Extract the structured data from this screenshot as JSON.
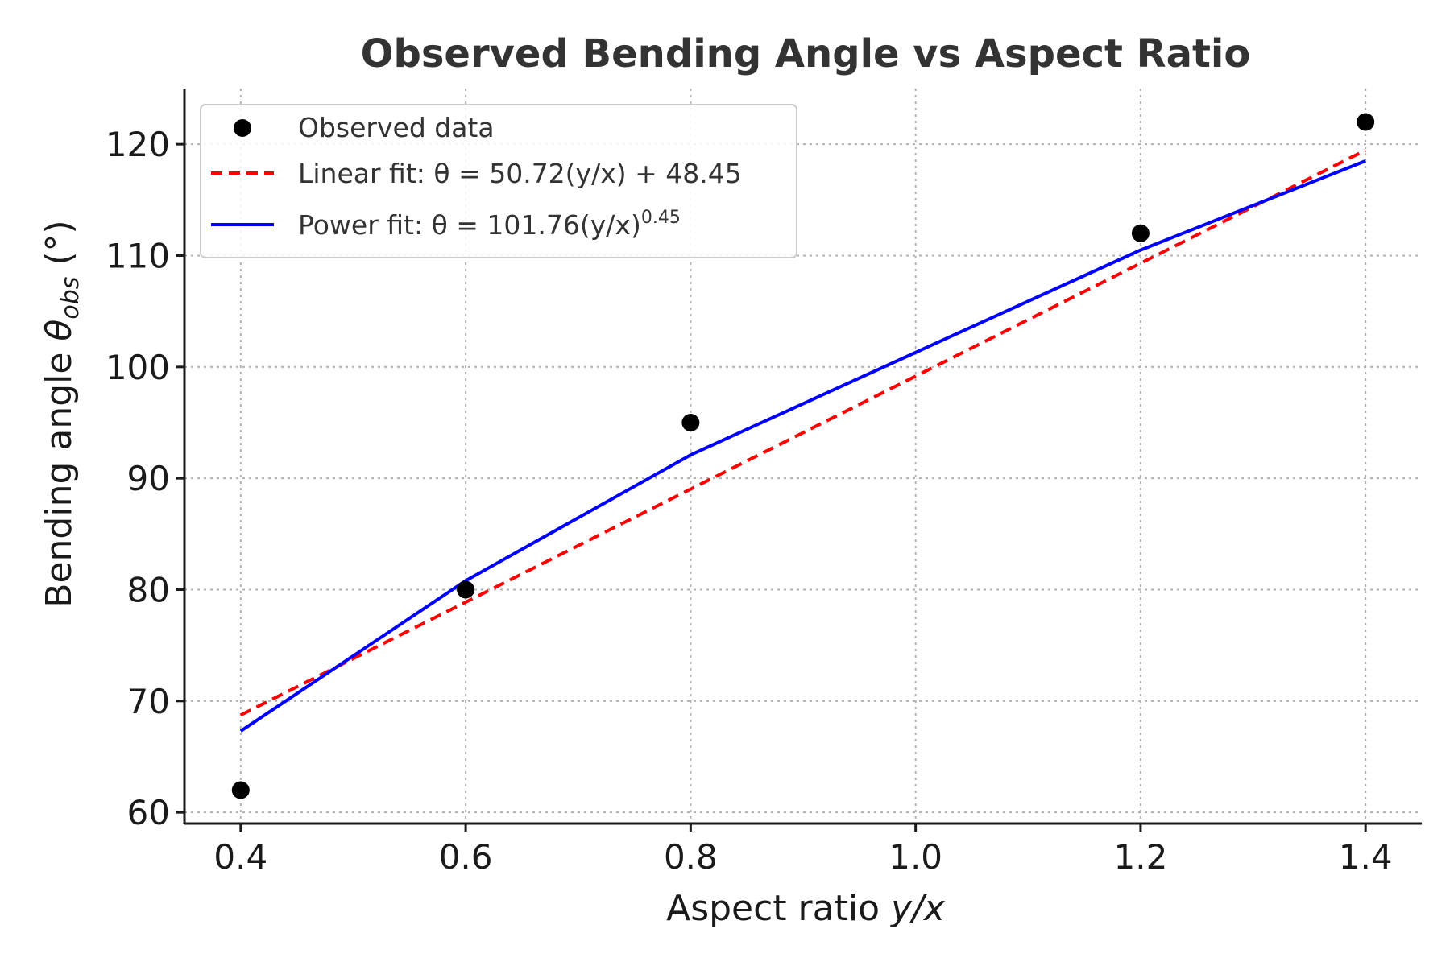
{
  "chart_data": {
    "type": "scatter",
    "title": "Observed Bending Angle vs Aspect Ratio",
    "xlabel": {
      "prefix": "Aspect ratio ",
      "italic": "y/x"
    },
    "ylabel": {
      "prefix": "Bending angle ",
      "symbol": "θ",
      "subscript": "obs",
      "suffix": " (°)"
    },
    "xlim": [
      0.35,
      1.45
    ],
    "ylim": [
      59,
      125
    ],
    "xticks": [
      0.4,
      0.6,
      0.8,
      1.0,
      1.2,
      1.4
    ],
    "xtick_labels": [
      "0.4",
      "0.6",
      "0.8",
      "1.0",
      "1.2",
      "1.4"
    ],
    "yticks": [
      60,
      70,
      80,
      90,
      100,
      110,
      120
    ],
    "ytick_labels": [
      "60",
      "70",
      "80",
      "90",
      "100",
      "110",
      "120"
    ],
    "grid": true,
    "legend_placement": "top-left",
    "series": [
      {
        "name": "Observed data",
        "kind": "scatter",
        "color": "#000000",
        "x": [
          0.4,
          0.6,
          0.8,
          1.2,
          1.4
        ],
        "y": [
          62,
          80,
          95,
          112,
          122
        ]
      },
      {
        "name": "Linear fit: θ = 50.72(y/x) + 48.45",
        "legend": {
          "prefix": "Linear fit: ",
          "expr": "θ = 50.72(y/x) + 48.45"
        },
        "kind": "line",
        "style": "dashed",
        "color": "#ff0000",
        "x": [
          0.4,
          0.6,
          0.8,
          1.2,
          1.4
        ],
        "y": [
          68.74,
          78.88,
          89.03,
          109.31,
          119.46
        ]
      },
      {
        "name": "Power fit: θ = 101.76(y/x)^0.45",
        "legend": {
          "prefix": "Power fit: ",
          "expr": "θ = 101.76(y/x)",
          "sup": "0.45"
        },
        "kind": "line",
        "style": "solid",
        "color": "#0000ff",
        "x": [
          0.4,
          0.6,
          0.8,
          1.2,
          1.4
        ],
        "y": [
          67.3,
          80.8,
          92.1,
          110.5,
          118.5
        ]
      }
    ]
  }
}
